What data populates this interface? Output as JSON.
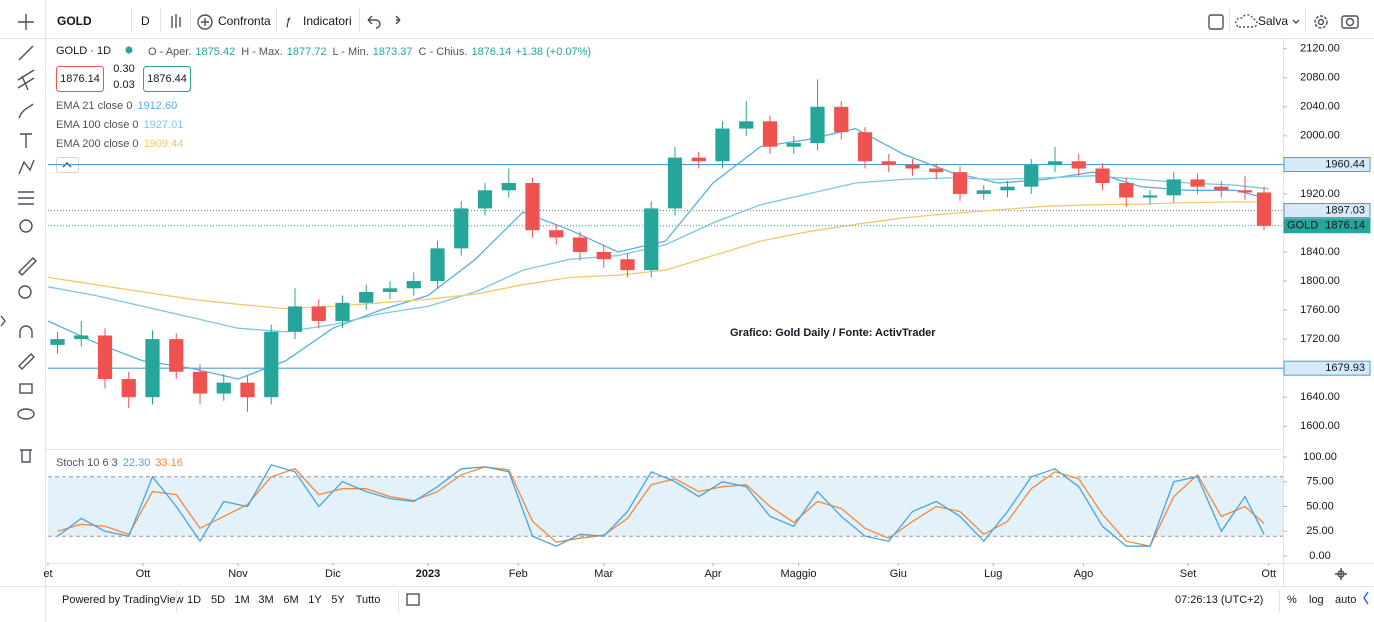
{
  "toolbar": {
    "symbol": "GOLD",
    "interval": "D",
    "compare": "Confronta",
    "indicators": "Indicatori",
    "save": "Salva"
  },
  "legend": {
    "symbol": "GOLD · 1D",
    "ohlc": [
      {
        "label": "O - Aper.",
        "value": "1875.42"
      },
      {
        "label": "H - Max.",
        "value": "1877.72"
      },
      {
        "label": "L - Min.",
        "value": "1873.37"
      },
      {
        "label": "C - Chius.",
        "value": "1876.14"
      }
    ],
    "change": "+1.38 (+0.07%)",
    "sell": "1876.14",
    "spread_top": "0.30",
    "spread_bottom": "0.03",
    "buy": "1876.44"
  },
  "bottom_bar": {
    "powered": "Powered by TradingView",
    "ranges": [
      "1D",
      "5D",
      "1M",
      "3M",
      "6M",
      "1Y",
      "5Y",
      "Tutto"
    ],
    "clock": "07:26:13 (UTC+2)",
    "percent": "%",
    "log": "log",
    "auto": "auto"
  },
  "chart_data": {
    "type": "candlestick",
    "annotation": "Grafico: Gold Daily / Fonte: ActivTrader",
    "x": [
      2,
      7,
      12,
      17,
      22,
      27,
      32,
      37,
      42,
      47,
      52,
      57,
      62,
      67,
      72,
      77,
      82,
      87,
      92,
      97,
      102,
      107,
      112,
      117,
      122,
      127,
      132,
      137,
      142,
      147,
      152,
      157,
      162,
      167,
      172,
      177,
      182,
      187,
      192,
      197,
      202,
      207,
      212,
      217,
      222,
      227,
      232,
      237,
      242,
      247,
      252,
      256
    ],
    "open": [
      1712,
      1720,
      1725,
      1665,
      1640,
      1720,
      1675,
      1645,
      1660,
      1640,
      1730,
      1765,
      1745,
      1770,
      1785,
      1790,
      1800,
      1845,
      1900,
      1925,
      1935,
      1870,
      1860,
      1840,
      1830,
      1815,
      1900,
      1970,
      1965,
      2010,
      2020,
      1985,
      1990,
      2040,
      2005,
      1965,
      1960,
      1955,
      1950,
      1920,
      1925,
      1930,
      1960,
      1965,
      1955,
      1935,
      1915,
      1918,
      1940,
      1930,
      1925,
      1922
    ],
    "high": [
      1730,
      1745,
      1735,
      1675,
      1732,
      1728,
      1685,
      1672,
      1670,
      1740,
      1790,
      1775,
      1780,
      1795,
      1800,
      1812,
      1855,
      1910,
      1935,
      1955,
      1942,
      1878,
      1868,
      1850,
      1838,
      1910,
      1985,
      1978,
      2020,
      2048,
      2028,
      2000,
      2078,
      2048,
      2012,
      1975,
      1968,
      1962,
      1958,
      1932,
      1938,
      1968,
      1985,
      1975,
      1962,
      1942,
      1925,
      1950,
      1948,
      1938,
      1945,
      1930
    ],
    "low": [
      1700,
      1710,
      1652,
      1625,
      1630,
      1665,
      1630,
      1635,
      1620,
      1630,
      1720,
      1735,
      1735,
      1760,
      1775,
      1780,
      1790,
      1835,
      1890,
      1915,
      1860,
      1850,
      1828,
      1818,
      1805,
      1805,
      1890,
      1955,
      1955,
      2000,
      1975,
      1975,
      1980,
      1995,
      1955,
      1950,
      1945,
      1940,
      1910,
      1912,
      1915,
      1920,
      1950,
      1945,
      1925,
      1902,
      1905,
      1908,
      1920,
      1915,
      1912,
      1870
    ],
    "close": [
      1720,
      1725,
      1665,
      1640,
      1720,
      1675,
      1645,
      1660,
      1640,
      1730,
      1765,
      1745,
      1770,
      1785,
      1790,
      1800,
      1845,
      1900,
      1925,
      1935,
      1870,
      1860,
      1840,
      1830,
      1815,
      1900,
      1970,
      1965,
      2010,
      2020,
      1985,
      1990,
      2040,
      2005,
      1965,
      1960,
      1955,
      1950,
      1920,
      1925,
      1930,
      1960,
      1965,
      1955,
      1935,
      1915,
      1918,
      1940,
      1930,
      1925,
      1922,
      1876
    ],
    "up_color": "#26a69a",
    "down_color": "#ef5350",
    "xlim": [
      0,
      260
    ],
    "xticks": [
      {
        "value": 0,
        "label": "et"
      },
      {
        "value": 20,
        "label": "Ott"
      },
      {
        "value": 40,
        "label": "Nov"
      },
      {
        "value": 60,
        "label": "Dic"
      },
      {
        "value": 80,
        "label": "2023"
      },
      {
        "value": 99,
        "label": "Feb"
      },
      {
        "value": 117,
        "label": "Mar"
      },
      {
        "value": 140,
        "label": "Apr"
      },
      {
        "value": 158,
        "label": "Maggio"
      },
      {
        "value": 179,
        "label": "Giu"
      },
      {
        "value": 199,
        "label": "Lug"
      },
      {
        "value": 218,
        "label": "Ago"
      },
      {
        "value": 240,
        "label": "Set"
      },
      {
        "value": 257,
        "label": "Ott"
      }
    ],
    "ylim": [
      1570,
      2132
    ],
    "yticks": [
      {
        "value": 1600,
        "label": "1600.00"
      },
      {
        "value": 1640,
        "label": "1640.00"
      },
      {
        "value": 1680,
        "label": "1680.00"
      },
      {
        "value": 1720,
        "label": "1720.00"
      },
      {
        "value": 1760,
        "label": "1760.00"
      },
      {
        "value": 1800,
        "label": "1800.00"
      },
      {
        "value": 1840,
        "label": "1840.00"
      },
      {
        "value": 1880,
        "label": "1880.00"
      },
      {
        "value": 1920,
        "label": "1920.00"
      },
      {
        "value": 1960,
        "label": "1960.00"
      },
      {
        "value": 2000,
        "label": "2000.00"
      },
      {
        "value": 2040,
        "label": "2040.00"
      },
      {
        "value": 2080,
        "label": "2080.00"
      },
      {
        "value": 2120,
        "label": "2120.00"
      }
    ],
    "grid": false,
    "overlays": [
      {
        "name": "EMA 21 close 0",
        "value_label": "1912.60",
        "color": "#5aaee0",
        "x": [
          0,
          10,
          20,
          30,
          40,
          50,
          60,
          70,
          80,
          90,
          100,
          110,
          120,
          130,
          140,
          150,
          160,
          170,
          180,
          190,
          200,
          210,
          220,
          230,
          240,
          250,
          257
        ],
        "values": [
          1745,
          1715,
          1690,
          1680,
          1665,
          1690,
          1735,
          1760,
          1780,
          1830,
          1895,
          1870,
          1840,
          1855,
          1935,
          1985,
          1995,
          2010,
          1975,
          1950,
          1935,
          1940,
          1950,
          1930,
          1925,
          1925,
          1913
        ]
      },
      {
        "name": "EMA 100 close 0",
        "value_label": "1927.01",
        "color": "#7ec6e6",
        "x": [
          0,
          10,
          20,
          30,
          40,
          50,
          60,
          70,
          80,
          90,
          100,
          110,
          120,
          130,
          140,
          150,
          160,
          170,
          180,
          190,
          200,
          210,
          220,
          230,
          240,
          250,
          257
        ],
        "values": [
          1792,
          1780,
          1765,
          1750,
          1735,
          1730,
          1740,
          1755,
          1765,
          1785,
          1815,
          1830,
          1835,
          1850,
          1880,
          1905,
          1920,
          1935,
          1940,
          1942,
          1940,
          1942,
          1945,
          1940,
          1935,
          1932,
          1927
        ]
      },
      {
        "name": "EMA 200 close 0",
        "value_label": "1909.44",
        "color": "#f5c76e",
        "x": [
          0,
          10,
          20,
          30,
          40,
          50,
          60,
          70,
          80,
          90,
          100,
          110,
          120,
          130,
          140,
          150,
          160,
          170,
          180,
          190,
          200,
          210,
          220,
          230,
          240,
          250,
          257
        ],
        "values": [
          1805,
          1795,
          1785,
          1775,
          1768,
          1762,
          1765,
          1770,
          1775,
          1782,
          1795,
          1805,
          1808,
          1815,
          1835,
          1855,
          1868,
          1878,
          1887,
          1893,
          1898,
          1903,
          1905,
          1906,
          1908,
          1909,
          1909
        ]
      }
    ],
    "levels": [
      {
        "value": 1960.44,
        "color": "#4a9fd8",
        "style": "solid"
      },
      {
        "value": 1897.03,
        "color": "#7a8aa0",
        "style": "dotted"
      },
      {
        "value": 1679.93,
        "color": "#4a9fd8",
        "style": "solid"
      }
    ],
    "last_price": {
      "symbol": "GOLD",
      "value": 1876.14,
      "color": "#26a69a"
    },
    "indicator": {
      "name": "Stoch 10 6 3",
      "k_label": "22.30",
      "d_label": "33.16",
      "k_color": "#4aa3df",
      "d_color": "#f08a3c",
      "band_color": "#e3f1fb",
      "k": [
        20,
        38,
        25,
        20,
        80,
        50,
        15,
        55,
        50,
        92,
        85,
        50,
        75,
        65,
        58,
        55,
        70,
        88,
        90,
        85,
        20,
        10,
        22,
        20,
        45,
        85,
        75,
        60,
        75,
        70,
        40,
        30,
        65,
        40,
        20,
        15,
        45,
        55,
        40,
        15,
        45,
        80,
        88,
        70,
        30,
        10,
        10,
        75,
        80,
        25,
        60,
        22
      ],
      "d": [
        25,
        32,
        30,
        22,
        65,
        62,
        28,
        40,
        52,
        80,
        88,
        62,
        68,
        68,
        60,
        56,
        65,
        82,
        90,
        87,
        35,
        14,
        18,
        21,
        38,
        72,
        78,
        65,
        70,
        72,
        50,
        34,
        55,
        48,
        28,
        18,
        35,
        50,
        45,
        22,
        35,
        68,
        85,
        78,
        42,
        15,
        10,
        60,
        82,
        40,
        50,
        33
      ],
      "bands": [
        20,
        80
      ],
      "ylim": [
        -7,
        106
      ],
      "yticks": [
        {
          "value": 0,
          "label": "0.00"
        },
        {
          "value": 25,
          "label": "25.00"
        },
        {
          "value": 50,
          "label": "50.00"
        },
        {
          "value": 75,
          "label": "75.00"
        },
        {
          "value": 100,
          "label": "100.00"
        }
      ]
    }
  }
}
